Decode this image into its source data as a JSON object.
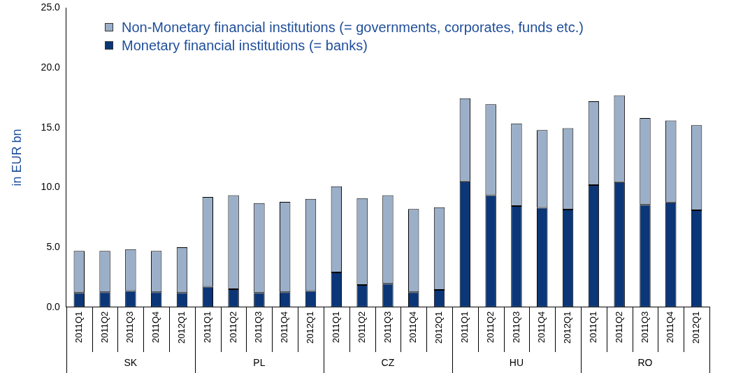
{
  "chart_data": {
    "type": "bar",
    "stacked": true,
    "ylabel": "in EUR bn",
    "categories": [
      "2011Q1",
      "2011Q2",
      "2011Q3",
      "2011Q4",
      "2012Q1",
      "2011Q1",
      "2011Q2",
      "2011Q3",
      "2011Q4",
      "2012Q1",
      "2011Q1",
      "2011Q2",
      "2011Q3",
      "2011Q4",
      "2012Q1",
      "2011Q1",
      "2011Q2",
      "2011Q3",
      "2011Q4",
      "2012Q1",
      "2011Q1",
      "2011Q2",
      "2011Q3",
      "2011Q4",
      "2012Q1"
    ],
    "series": [
      {
        "name": "Monetary financial institutions (= banks)",
        "color": "#0b3677",
        "values": [
          1.2,
          1.25,
          1.35,
          1.25,
          1.2,
          1.7,
          1.5,
          1.2,
          1.25,
          1.35,
          2.9,
          1.85,
          1.95,
          1.25,
          1.45,
          10.5,
          9.35,
          8.45,
          8.3,
          8.15,
          10.2,
          10.45,
          8.55,
          8.75,
          8.1
        ]
      },
      {
        "name": "Non-Monetary financial institutions (= governments, corporates, funds etc.)",
        "color": "#9bafc8",
        "values": [
          3.5,
          3.45,
          3.5,
          3.45,
          3.8,
          7.5,
          7.85,
          7.5,
          7.55,
          7.7,
          7.2,
          7.25,
          7.4,
          6.95,
          6.9,
          6.95,
          7.6,
          6.9,
          6.5,
          6.8,
          7.0,
          7.25,
          7.25,
          6.85,
          7.1
        ]
      }
    ],
    "ylim": [
      0,
      25
    ],
    "yticks": [
      {
        "value": 0,
        "label": "0.0"
      },
      {
        "value": 5,
        "label": "5.0"
      },
      {
        "value": 10,
        "label": "10.0"
      },
      {
        "value": 15,
        "label": "15.0"
      },
      {
        "value": 20,
        "label": "20.0"
      },
      {
        "value": 25,
        "label": "25.0"
      }
    ],
    "annotations": [
      "SK",
      "PL",
      "CZ",
      "HU",
      "RO"
    ],
    "grid": false,
    "legend": "top"
  }
}
